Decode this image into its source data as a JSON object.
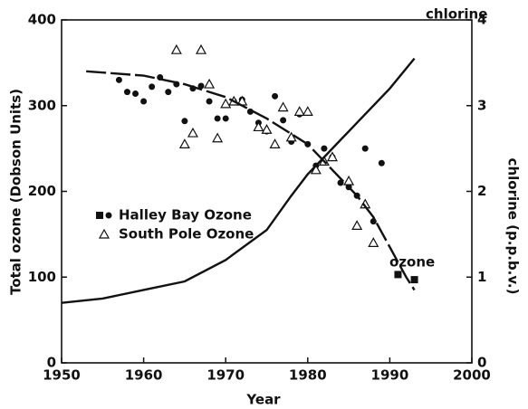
{
  "chart_data": {
    "type": "scatter",
    "xlabel": "Year",
    "ylabel": "Total ozone (Dobson Units)",
    "y2label": "chlorine (p.p.b.v.)",
    "xlim": [
      1950,
      2000
    ],
    "xticks": [
      1950,
      1960,
      1970,
      1980,
      1990,
      2000
    ],
    "ylim": [
      0,
      400
    ],
    "yticks": [
      0,
      100,
      200,
      300,
      400
    ],
    "y2lim": [
      0,
      4
    ],
    "y2ticks": [
      0,
      1,
      2,
      3,
      4
    ],
    "color": "#111111",
    "series": [
      {
        "name": "Halley Bay Ozone",
        "type": "scatter",
        "marker": "circle",
        "x": [
          1957,
          1958,
          1959,
          1960,
          1961,
          1962,
          1963,
          1964,
          1965,
          1966,
          1967,
          1968,
          1969,
          1970,
          1971,
          1972,
          1973,
          1974,
          1975,
          1976,
          1977,
          1978,
          1979,
          1980,
          1981,
          1982,
          1983,
          1984,
          1985,
          1986,
          1987,
          1988,
          1989,
          1991,
          1993
        ],
        "values": [
          330,
          316,
          314,
          305,
          322,
          333,
          316,
          325,
          282,
          320,
          323,
          305,
          285,
          285,
          305,
          307,
          293,
          280,
          270,
          311,
          283,
          258,
          290,
          255,
          230,
          250,
          240,
          210,
          205,
          195,
          250,
          165,
          233,
          103,
          97
        ],
        "markers": [
          "circle",
          "circle",
          "circle",
          "circle",
          "circle",
          "circle",
          "circle",
          "circle",
          "circle",
          "circle",
          "circle",
          "circle",
          "circle",
          "circle",
          "circle",
          "circle",
          "circle",
          "circle",
          "circle",
          "circle",
          "circle",
          "circle",
          "circle",
          "circle",
          "circle",
          "circle",
          "circle",
          "circle",
          "circle",
          "circle",
          "circle",
          "circle",
          "circle",
          "square",
          "square"
        ]
      },
      {
        "name": "South Pole Ozone",
        "type": "scatter",
        "marker": "triangle",
        "x": [
          1964,
          1967,
          1965,
          1966,
          1968,
          1969,
          1970,
          1971,
          1972,
          1974,
          1975,
          1976,
          1977,
          1978,
          1979,
          1980,
          1981,
          1982,
          1983,
          1985,
          1986,
          1987,
          1988
        ],
        "values": [
          365,
          365,
          255,
          268,
          325,
          262,
          302,
          305,
          305,
          275,
          272,
          255,
          298,
          263,
          293,
          293,
          225,
          235,
          240,
          212,
          160,
          185,
          140
        ]
      },
      {
        "name": "ozone",
        "type": "line",
        "dash": true,
        "x": [
          1953,
          1960,
          1965,
          1970,
          1975,
          1980,
          1983,
          1986,
          1988,
          1990,
          1992,
          1993
        ],
        "values": [
          340,
          335,
          325,
          310,
          285,
          255,
          225,
          195,
          170,
          135,
          100,
          85
        ]
      },
      {
        "name": "chlorine",
        "type": "line",
        "axis": "y2",
        "x": [
          1950,
          1955,
          1960,
          1965,
          1970,
          1975,
          1978,
          1980,
          1983,
          1986,
          1990,
          1993
        ],
        "values": [
          0.7,
          0.75,
          0.85,
          0.95,
          1.2,
          1.55,
          1.95,
          2.2,
          2.5,
          2.8,
          3.2,
          3.55
        ]
      }
    ]
  }
}
